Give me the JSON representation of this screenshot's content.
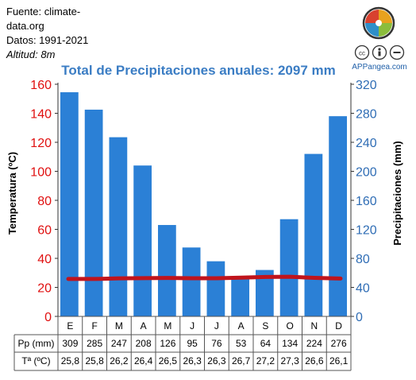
{
  "source": {
    "line1": "Fuente: climate-",
    "line2": "data.org",
    "line3": "Datos: 1991-2021",
    "line4": "Altitud: 8m"
  },
  "brand": "APPangea.com",
  "chart_data": {
    "type": "bar",
    "title": "Total de Precipitaciones anuales: 2097 mm",
    "categories": [
      "E",
      "F",
      "M",
      "A",
      "M",
      "J",
      "J",
      "A",
      "S",
      "O",
      "N",
      "D"
    ],
    "series": [
      {
        "name": "Pp (mm)",
        "type": "bar",
        "axis": "right",
        "color": "#2b80d6",
        "values": [
          309,
          285,
          247,
          208,
          126,
          95,
          76,
          53,
          64,
          134,
          224,
          276
        ]
      },
      {
        "name": "Tª (ºC)",
        "type": "line",
        "axis": "left",
        "color": "#c0141c",
        "values": [
          25.8,
          25.8,
          26.2,
          26.4,
          26.5,
          26.3,
          26.3,
          26.7,
          27.2,
          27.3,
          26.6,
          26.1
        ]
      }
    ],
    "table_values": {
      "pp": [
        "309",
        "285",
        "247",
        "208",
        "126",
        "95",
        "76",
        "53",
        "64",
        "134",
        "224",
        "276"
      ],
      "t": [
        "25,8",
        "25,8",
        "26,2",
        "26,4",
        "26,5",
        "26,3",
        "26,3",
        "26,7",
        "27,2",
        "27,3",
        "26,6",
        "26,1"
      ]
    },
    "ylabel_left": "Temperatura (ºC)",
    "ylabel_right": "Precipitaciones (mm)",
    "ylim_left": [
      0,
      160
    ],
    "ylim_right": [
      0,
      320
    ],
    "yticks_left": [
      "0",
      "20",
      "40",
      "60",
      "80",
      "100",
      "120",
      "140",
      "160"
    ],
    "yticks_right": [
      "0",
      "40",
      "80",
      "120",
      "160",
      "200",
      "240",
      "280",
      "320"
    ],
    "left_tick_color": "#e01010",
    "right_tick_color": "#2f6db5",
    "grid": false
  }
}
